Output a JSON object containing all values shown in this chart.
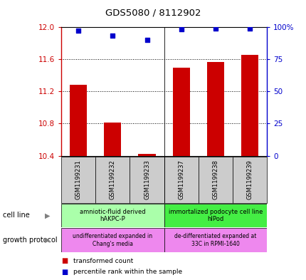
{
  "title": "GDS5080 / 8112902",
  "samples": [
    "GSM1199231",
    "GSM1199232",
    "GSM1199233",
    "GSM1199237",
    "GSM1199238",
    "GSM1199239"
  ],
  "bar_values": [
    11.28,
    10.81,
    10.42,
    11.49,
    11.56,
    11.65
  ],
  "dot_values": [
    97,
    93,
    90,
    98,
    99,
    99
  ],
  "ylim_left": [
    10.4,
    12.0
  ],
  "ylim_right": [
    0,
    100
  ],
  "yticks_left": [
    10.4,
    10.8,
    11.2,
    11.6,
    12.0
  ],
  "yticks_right": [
    0,
    25,
    50,
    75,
    100
  ],
  "bar_color": "#cc0000",
  "dot_color": "#0000cc",
  "bar_bottom": 10.4,
  "cell_line_labels": [
    "amniotic-fluid derived\nhAKPC-P",
    "immortalized podocyte cell line\nhIPod"
  ],
  "cell_line_colors": [
    "#aaffaa",
    "#44ee44"
  ],
  "growth_protocol_labels": [
    "undifferentiated expanded in\nChang's media",
    "de-differentiated expanded at\n33C in RPMI-1640"
  ],
  "growth_protocol_color": "#ee88ee",
  "legend_red_label": "transformed count",
  "legend_blue_label": "percentile rank within the sample",
  "background_color": "#ffffff",
  "sample_area_color": "#cccccc",
  "tick_label_color_left": "#cc0000",
  "tick_label_color_right": "#0000cc",
  "grid_color": "#000000"
}
